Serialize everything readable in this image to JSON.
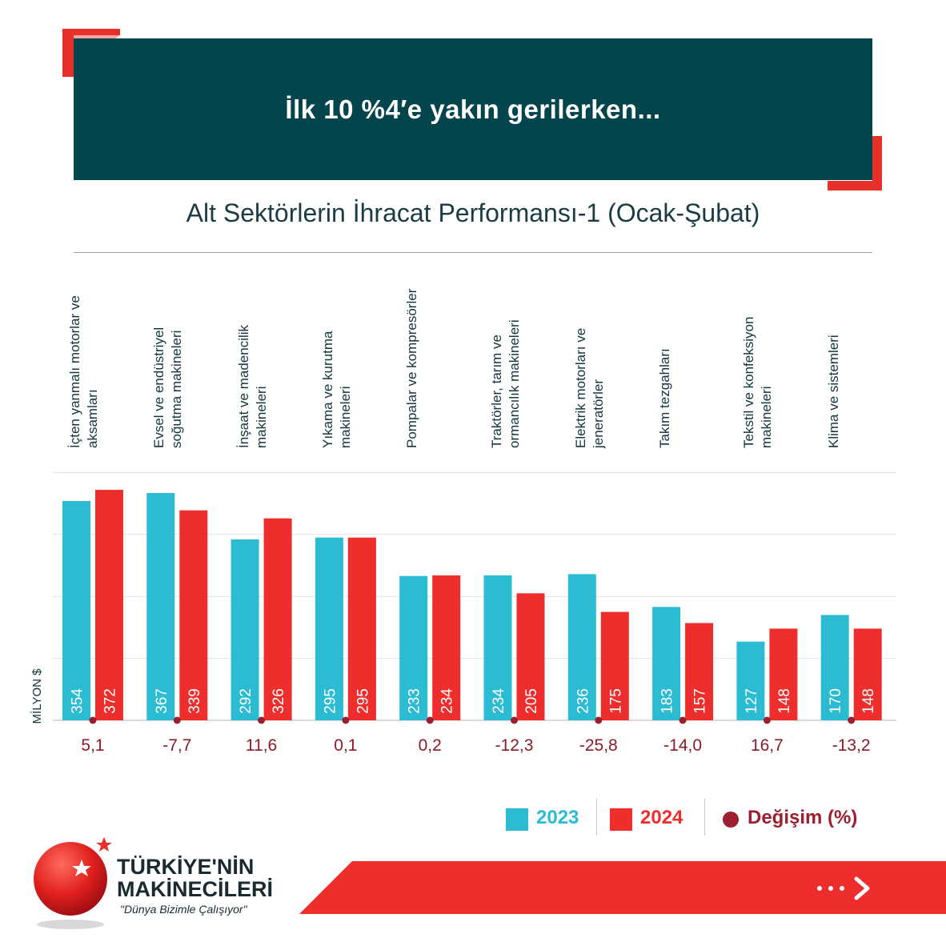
{
  "header": {
    "title": "İlk 10 %4′e yakın gerilerken..."
  },
  "chart_data": {
    "type": "bar",
    "title": "Alt Sektörlerin İhracat Performansı-1 (Ocak-Şubat)",
    "ylabel": "MİLYON $",
    "grid": true,
    "categories": [
      "İçten yanmalı motorlar ve aksamları",
      "Evsel ve endüstriyel soğutma makineleri",
      "İnşaat ve madencilik makineleri",
      "Yıkama ve kurutma makineleri",
      "Pompalar ve kompresörler",
      "Traktörler, tarım ve ormancılık makineleri",
      "Elektrik motorları ve jeneratörler",
      "Takım tezgahları",
      "Tekstil ve konfeksiyon makineleri",
      "Klima ve sistemleri"
    ],
    "series": [
      {
        "name": "2023",
        "color": "#2bbcd4",
        "values": [
          354,
          367,
          292,
          295,
          233,
          234,
          236,
          183,
          127,
          170
        ],
        "labels": [
          "354",
          "367",
          "292",
          "295",
          "233",
          "234",
          "236",
          "183",
          "127",
          "170"
        ]
      },
      {
        "name": "2024",
        "color": "#ee2e2c",
        "values": [
          372,
          339,
          326,
          295,
          234,
          205,
          175,
          157,
          148,
          148
        ],
        "labels": [
          "372",
          "339",
          "326",
          "295",
          "234",
          "205",
          "175",
          "157",
          "148",
          "148"
        ]
      }
    ],
    "change": {
      "name": "Değişim (%)",
      "color": "#9b1f2e",
      "values": [
        5.1,
        -7.7,
        11.6,
        0.1,
        0.2,
        -12.3,
        -25.8,
        -14.0,
        16.7,
        -13.2
      ],
      "labels": [
        "5,1",
        "-7,7",
        "11,6",
        "0,1",
        "0,2",
        "-12,3",
        "-25,8",
        "-14,0",
        "16,7",
        "-13,2"
      ]
    }
  },
  "legend": {
    "item1": "2023",
    "item2": "2024",
    "item3": "Değişim (%)"
  },
  "brand": {
    "line1": "TÜRKİYE'NİN",
    "line2": "MAKİNECİLERİ",
    "slogan": "\"Dünya Bizimle Çalışıyor\""
  }
}
